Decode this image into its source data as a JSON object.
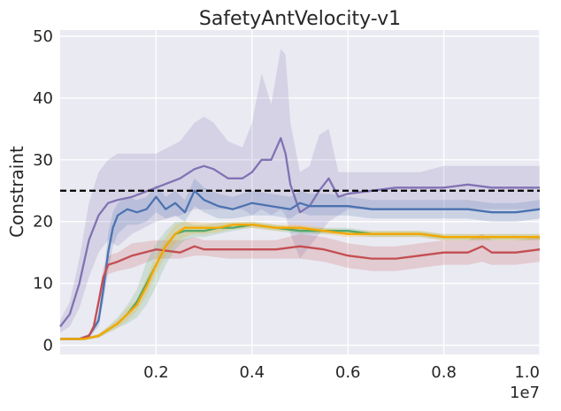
{
  "chart_data": {
    "type": "line",
    "title": "SafetyAntVelocity-v1",
    "xlabel": "",
    "ylabel": "Constraint",
    "x_multiplier_label": "1e7",
    "xlim": [
      0.0,
      1.0
    ],
    "ylim": [
      -1.5,
      51
    ],
    "xticks": [
      0.2,
      0.4,
      0.6,
      0.8,
      1.0
    ],
    "xtick_labels": [
      "0.2",
      "0.4",
      "0.6",
      "0.8",
      "1.0"
    ],
    "yticks": [
      0,
      10,
      20,
      30,
      40,
      50
    ],
    "ytick_labels": [
      "0",
      "10",
      "20",
      "30",
      "40",
      "50"
    ],
    "grid": true,
    "threshold": {
      "value": 25,
      "style": "dashed",
      "color": "#000000"
    },
    "colors": {
      "background": "#EAEAF2",
      "grid": "#FFFFFF"
    },
    "series": [
      {
        "name": "purple",
        "color": "#8172B3",
        "x": [
          0.0,
          0.02,
          0.04,
          0.06,
          0.08,
          0.1,
          0.12,
          0.15,
          0.2,
          0.25,
          0.28,
          0.3,
          0.32,
          0.35,
          0.38,
          0.4,
          0.42,
          0.44,
          0.46,
          0.47,
          0.48,
          0.5,
          0.52,
          0.54,
          0.56,
          0.58,
          0.6,
          0.65,
          0.7,
          0.75,
          0.8,
          0.85,
          0.9,
          0.95,
          1.0
        ],
        "values": [
          3,
          5,
          10,
          17,
          21,
          23,
          23.5,
          24,
          25.5,
          27,
          28.5,
          29,
          28.5,
          27,
          27,
          28,
          30,
          30,
          33.5,
          31,
          26,
          21.5,
          22.5,
          25,
          27,
          24,
          24.5,
          25,
          25.5,
          25.5,
          25.5,
          26,
          25.5,
          25.5,
          25.5
        ],
        "lower": [
          2,
          3,
          6,
          11,
          15,
          17,
          16,
          18,
          20,
          21,
          22,
          22,
          22,
          22,
          22,
          21,
          22,
          21,
          22,
          21,
          18,
          14,
          16,
          18,
          20,
          21,
          22,
          22,
          22,
          22,
          22,
          22,
          22,
          22,
          22
        ],
        "upper": [
          4,
          7,
          14,
          23,
          28,
          30,
          31,
          31,
          31,
          33,
          36,
          37,
          36,
          33,
          32,
          36,
          44,
          39,
          48,
          47,
          36,
          28,
          29,
          34,
          35,
          28,
          28,
          28,
          28,
          28,
          29,
          29,
          29,
          29,
          29
        ]
      },
      {
        "name": "blue",
        "color": "#4C72B0",
        "x": [
          0.0,
          0.04,
          0.06,
          0.08,
          0.09,
          0.1,
          0.11,
          0.12,
          0.14,
          0.16,
          0.18,
          0.2,
          0.22,
          0.24,
          0.26,
          0.28,
          0.3,
          0.33,
          0.36,
          0.4,
          0.44,
          0.48,
          0.5,
          0.52,
          0.56,
          0.6,
          0.65,
          0.7,
          0.75,
          0.8,
          0.85,
          0.9,
          0.95,
          1.0
        ],
        "values": [
          1,
          1,
          1.5,
          4,
          9,
          15,
          19,
          21,
          22,
          21.5,
          22,
          24,
          22,
          23,
          21.5,
          25,
          23.5,
          22.5,
          22,
          23,
          22.5,
          22,
          23,
          22.5,
          22.5,
          22.5,
          22,
          22,
          22,
          22,
          22,
          21.5,
          21.5,
          22
        ],
        "lower": [
          0.8,
          0.8,
          1.2,
          3,
          7,
          12,
          16,
          18,
          19.5,
          19.5,
          20,
          21.5,
          20.5,
          21,
          20,
          22.5,
          21.5,
          20.5,
          20.5,
          21,
          21,
          20.5,
          21.5,
          21,
          21,
          21,
          20.5,
          20.5,
          20.5,
          20.5,
          20.5,
          20,
          20,
          20.5
        ],
        "upper": [
          1.2,
          1.2,
          1.8,
          5,
          11,
          18,
          21.5,
          23,
          24,
          23.5,
          24,
          26,
          24,
          25,
          23.5,
          27,
          25.5,
          24.5,
          24,
          25,
          24.5,
          24,
          25,
          24.5,
          24.5,
          24,
          23.5,
          23.5,
          23.5,
          23.5,
          23.5,
          23,
          23,
          23.5
        ]
      },
      {
        "name": "red",
        "color": "#C44E52",
        "x": [
          0.0,
          0.04,
          0.06,
          0.07,
          0.08,
          0.09,
          0.1,
          0.12,
          0.15,
          0.2,
          0.25,
          0.28,
          0.3,
          0.35,
          0.4,
          0.45,
          0.5,
          0.55,
          0.6,
          0.65,
          0.7,
          0.75,
          0.8,
          0.85,
          0.88,
          0.9,
          0.95,
          1.0
        ],
        "values": [
          1,
          1,
          1.5,
          3,
          7,
          11,
          13,
          13.5,
          14.5,
          15.5,
          15,
          16,
          15.5,
          15.5,
          15.5,
          15.5,
          16,
          15.5,
          14.5,
          14,
          14,
          14.5,
          15,
          15,
          16,
          15,
          15,
          15.5
        ],
        "lower": [
          0.8,
          0.8,
          1.2,
          2.4,
          6,
          9.5,
          11.5,
          12,
          12.5,
          14,
          14,
          14.5,
          14.5,
          14,
          14,
          14,
          14,
          13.5,
          12.5,
          12,
          12,
          12.5,
          13,
          13,
          13.5,
          13,
          13,
          13.5
        ],
        "upper": [
          1.2,
          1.2,
          1.8,
          3.6,
          8,
          12.5,
          14.5,
          15,
          16.5,
          17,
          17,
          17.5,
          17,
          17,
          17,
          17,
          18,
          17.5,
          16.5,
          16,
          16,
          16.5,
          17,
          17,
          18,
          17,
          17,
          17.5
        ]
      },
      {
        "name": "green",
        "color": "#55A868",
        "x": [
          0.0,
          0.05,
          0.08,
          0.1,
          0.12,
          0.14,
          0.16,
          0.18,
          0.2,
          0.22,
          0.24,
          0.26,
          0.28,
          0.3,
          0.33,
          0.36,
          0.4,
          0.45,
          0.5,
          0.55,
          0.6,
          0.65,
          0.7,
          0.75,
          0.8,
          0.85,
          0.9,
          0.95,
          1.0
        ],
        "values": [
          1,
          1,
          1.5,
          2.5,
          3.5,
          5,
          7,
          10,
          13,
          16,
          18,
          18.5,
          18.5,
          18.5,
          19,
          19,
          19.5,
          19,
          18.5,
          18.5,
          18.5,
          18,
          18,
          18,
          17.5,
          17.5,
          17.5,
          17.5,
          17.5
        ],
        "lower": [
          0.8,
          0.8,
          1.2,
          2,
          2.8,
          3.5,
          4.5,
          6.5,
          9.5,
          13,
          15.5,
          17,
          17.5,
          17.5,
          18,
          18.5,
          19,
          18.5,
          18,
          18,
          18,
          17.5,
          17.5,
          17.5,
          17,
          17,
          17,
          17,
          17
        ],
        "upper": [
          1.2,
          1.2,
          1.8,
          3,
          4.5,
          6.5,
          9,
          13.5,
          16.5,
          18.5,
          20,
          20,
          19.5,
          19.5,
          19.8,
          19.8,
          20,
          19.5,
          19,
          19,
          19,
          18.5,
          18.5,
          18.5,
          18,
          18,
          18,
          18,
          18
        ]
      },
      {
        "name": "orange",
        "color": "#F5A800",
        "x": [
          0.0,
          0.05,
          0.08,
          0.1,
          0.12,
          0.14,
          0.16,
          0.18,
          0.2,
          0.22,
          0.24,
          0.26,
          0.28,
          0.3,
          0.33,
          0.36,
          0.4,
          0.45,
          0.5,
          0.55,
          0.6,
          0.65,
          0.7,
          0.75,
          0.8,
          0.85,
          0.9,
          0.95,
          1.0
        ],
        "values": [
          1,
          1,
          1.5,
          2.5,
          3.5,
          5,
          6.5,
          9.5,
          13,
          16,
          18,
          19,
          19,
          19,
          19,
          19.5,
          19.5,
          19,
          19,
          18.5,
          18,
          18,
          18,
          18,
          17.5,
          17.5,
          17.5,
          17.5,
          17.5
        ],
        "lower": [
          0.8,
          0.8,
          1.2,
          2,
          2.8,
          4,
          5.5,
          8,
          11.5,
          14.5,
          16.5,
          17.5,
          18,
          18,
          18.3,
          18.8,
          19,
          18.5,
          18.5,
          18,
          17.5,
          17.5,
          17.5,
          17.5,
          17,
          17,
          17,
          17,
          17
        ],
        "upper": [
          1.2,
          1.2,
          1.8,
          3,
          4.2,
          6,
          7.5,
          11,
          14.5,
          17.5,
          19.5,
          20,
          20,
          19.8,
          19.8,
          20,
          20,
          19.5,
          19.5,
          19,
          18.5,
          18.5,
          18.5,
          18.5,
          18,
          18,
          18,
          18,
          18
        ]
      }
    ]
  }
}
